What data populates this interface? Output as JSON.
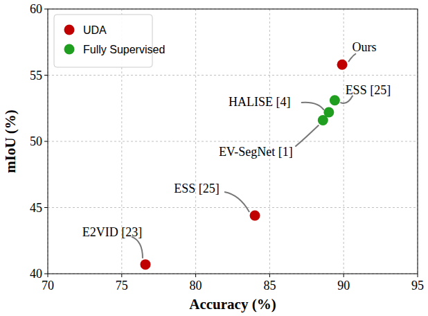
{
  "chart_data": {
    "type": "scatter",
    "x_label": "Accuracy (%)",
    "y_label": "mIoU (%)",
    "xlim": [
      70,
      95
    ],
    "xticks": [
      70,
      75,
      80,
      85,
      90,
      95
    ],
    "ylim": [
      40,
      60
    ],
    "yticks": [
      40,
      45,
      50,
      55,
      60
    ],
    "grid": true,
    "legend": "upper left",
    "series": [
      {
        "name": "UDA",
        "color": "#c00000",
        "marker": "circle",
        "x": [
          76.6,
          84.0,
          89.9
        ],
        "values": [
          40.7,
          44.4,
          55.8
        ],
        "labels": [
          "E2VID [23]",
          "ESS [25]",
          "Ours"
        ]
      },
      {
        "name": "Fully Supervised",
        "color": "#1f9e1f",
        "marker": "circle",
        "x": [
          88.6,
          89.0,
          89.4
        ],
        "values": [
          51.6,
          52.2,
          53.1
        ],
        "labels": [
          "EV-SegNet [1]",
          "HALISE [4]",
          "ESS [25]"
        ]
      }
    ]
  }
}
